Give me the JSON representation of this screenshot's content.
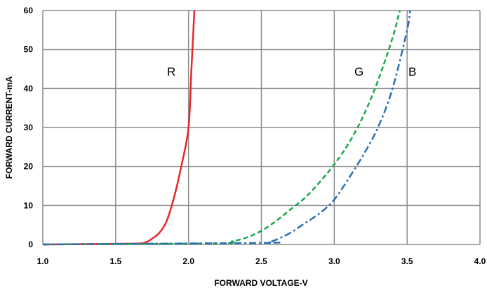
{
  "chart_data": {
    "type": "line",
    "title": "",
    "xlabel": "FORWARD VOLTAGE-V",
    "ylabel": "FORWARD CURRENT-mA",
    "xlim": [
      1.0,
      4.0
    ],
    "ylim": [
      0,
      60
    ],
    "x_ticks": [
      "1.0",
      "1.5",
      "2.0",
      "2.5",
      "3.0",
      "3.5",
      "4.0"
    ],
    "y_ticks": [
      "0",
      "10",
      "20",
      "30",
      "40",
      "50",
      "60"
    ],
    "grid": true,
    "series": [
      {
        "name": "R",
        "color": "#e8262b",
        "dash": "solid",
        "x": [
          1.0,
          1.6,
          1.7,
          1.75,
          1.8,
          1.85,
          1.9,
          1.95,
          2.0,
          2.02,
          2.04
        ],
        "y": [
          0,
          0.2,
          0.5,
          1.5,
          3,
          6,
          12,
          20,
          30,
          45,
          60
        ]
      },
      {
        "name": "G",
        "color": "#1aa64a",
        "dash": "dashed",
        "x": [
          1.0,
          2.2,
          2.3,
          2.4,
          2.5,
          2.6,
          2.7,
          2.8,
          2.9,
          3.0,
          3.1,
          3.2,
          3.3,
          3.4,
          3.45
        ],
        "y": [
          0,
          0.3,
          0.8,
          1.8,
          3.5,
          6,
          9,
          12,
          16,
          20.5,
          26,
          33,
          42,
          53,
          60
        ]
      },
      {
        "name": "B",
        "color": "#2a6eb5",
        "dash": "dashdot",
        "x": [
          1.0,
          2.5,
          2.55,
          2.6,
          2.7,
          2.8,
          2.9,
          3.0,
          3.1,
          3.2,
          3.3,
          3.4,
          3.5,
          3.52
        ],
        "y": [
          0,
          0.4,
          0.6,
          1.2,
          3,
          5.5,
          8,
          11.5,
          17,
          23,
          30,
          40,
          55,
          60
        ]
      }
    ]
  }
}
